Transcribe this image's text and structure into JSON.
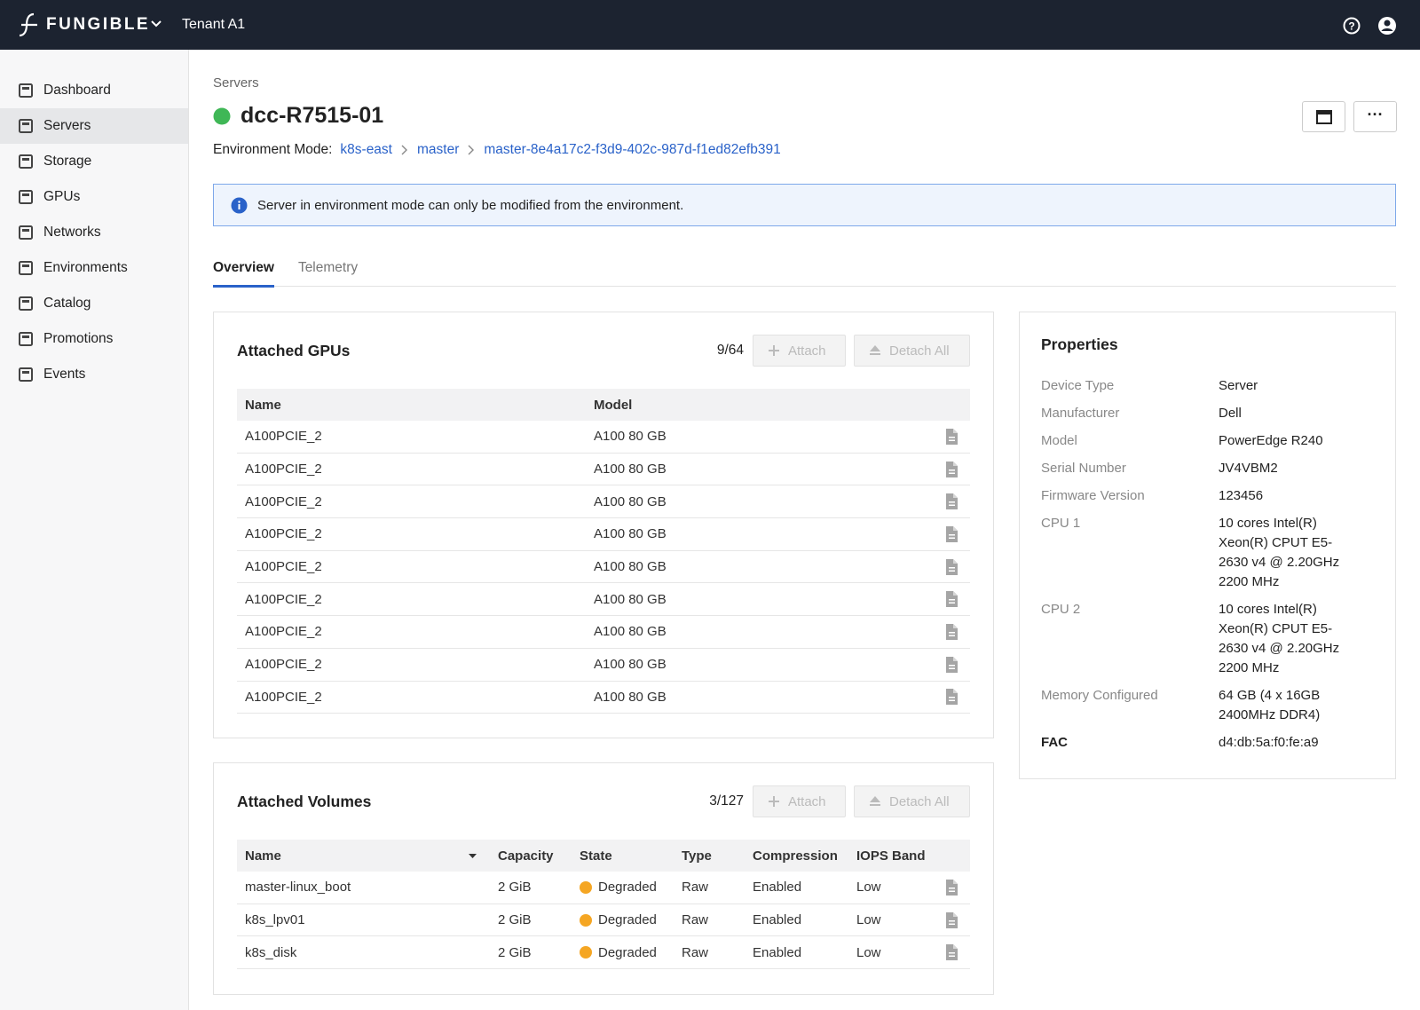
{
  "header": {
    "brand": "FUNGIBLE",
    "tenant": "Tenant A1"
  },
  "sidebar": {
    "items": [
      "Dashboard",
      "Servers",
      "Storage",
      "GPUs",
      "Networks",
      "Environments",
      "Catalog",
      "Promotions",
      "Events"
    ],
    "active": 1
  },
  "page": {
    "breadcrumb": "Servers",
    "title": "dcc-R7515-01",
    "env_label": "Environment Mode:",
    "env_path": [
      "k8s-east",
      "master",
      "master-8e4a17c2-f3d9-402c-987d-f1ed82efb391"
    ],
    "alert": "Server in environment mode can only be modified from the environment.",
    "tabs": [
      "Overview",
      "Telemetry"
    ]
  },
  "gpus": {
    "title": "Attached GPUs",
    "count": "9/64",
    "buttons": [
      "Attach",
      "Detach All"
    ],
    "columns": [
      "Name",
      "Model"
    ],
    "rows": [
      [
        "A100PCIE_2",
        "A100 80 GB"
      ],
      [
        "A100PCIE_2",
        "A100 80 GB"
      ],
      [
        "A100PCIE_2",
        "A100 80 GB"
      ],
      [
        "A100PCIE_2",
        "A100 80 GB"
      ],
      [
        "A100PCIE_2",
        "A100 80 GB"
      ],
      [
        "A100PCIE_2",
        "A100 80 GB"
      ],
      [
        "A100PCIE_2",
        "A100 80 GB"
      ],
      [
        "A100PCIE_2",
        "A100 80 GB"
      ],
      [
        "A100PCIE_2",
        "A100 80 GB"
      ]
    ]
  },
  "volumes": {
    "title": "Attached Volumes",
    "count": "3/127",
    "buttons": [
      "Attach",
      "Detach All"
    ],
    "columns": [
      "Name",
      "Capacity",
      "State",
      "Type",
      "Compression",
      "IOPS Band"
    ],
    "rows": [
      [
        "master-linux_boot",
        "2 GiB",
        "Degraded",
        "Raw",
        "Enabled",
        "Low"
      ],
      [
        "k8s_lpv01",
        "2 GiB",
        "Degraded",
        "Raw",
        "Enabled",
        "Low"
      ],
      [
        "k8s_disk",
        "2 GiB",
        "Degraded",
        "Raw",
        "Enabled",
        "Low"
      ]
    ]
  },
  "properties": {
    "title": "Properties",
    "rows": [
      [
        "Device Type",
        "Server"
      ],
      [
        "Manufacturer",
        "Dell"
      ],
      [
        "Model",
        "PowerEdge R240"
      ],
      [
        "Serial Number",
        "JV4VBM2"
      ],
      [
        "Firmware Version",
        "123456"
      ],
      [
        "CPU 1",
        "10 cores Intel(R) Xeon(R) CPUT E5-2630 v4 @ 2.20GHz 2200 MHz"
      ],
      [
        "CPU 2",
        "10 cores Intel(R) Xeon(R) CPUT E5-2630 v4 @ 2.20GHz 2200 MHz"
      ],
      [
        "Memory Configured",
        "64 GB (4 x 16GB 2400MHz DDR4)"
      ],
      [
        "FAC",
        "d4:db:5a:f0:fe:a9"
      ]
    ]
  }
}
